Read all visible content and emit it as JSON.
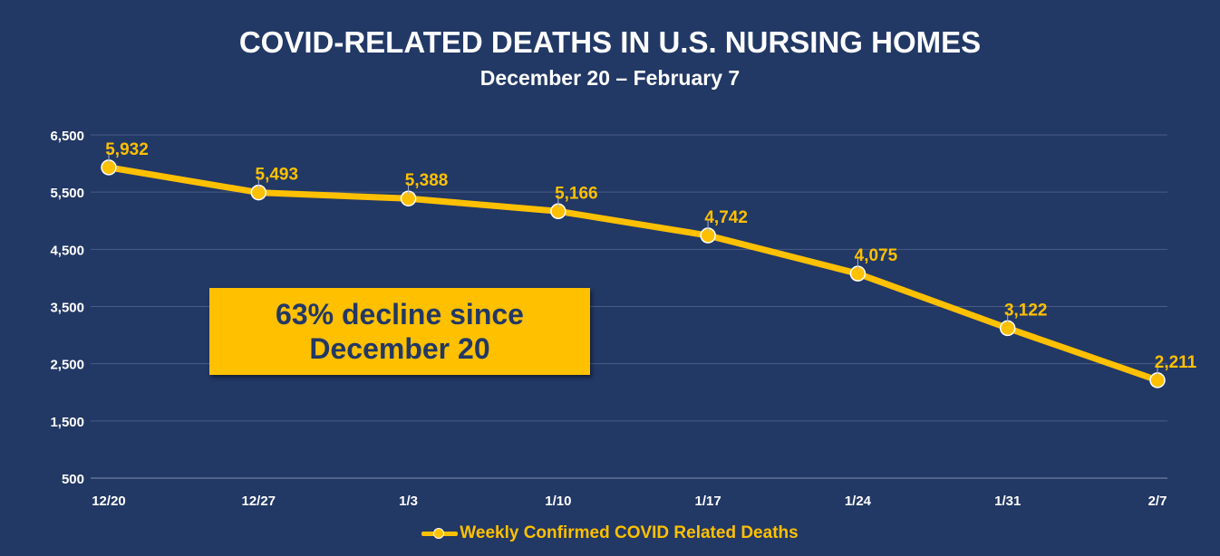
{
  "chart_data": {
    "type": "line",
    "title": "COVID-RELATED DEATHS IN U.S. NURSING HOMES",
    "subtitle": "December 20 – February 7",
    "categories": [
      "12/20",
      "12/27",
      "1/3",
      "1/10",
      "1/17",
      "1/24",
      "1/31",
      "2/7"
    ],
    "series": [
      {
        "name": "Weekly Confirmed COVID Related Deaths",
        "values": [
          5932,
          5493,
          5388,
          5166,
          4742,
          4075,
          3122,
          2211
        ],
        "value_labels": [
          "5,932",
          "5,493",
          "5,388",
          "5,166",
          "4,742",
          "4,075",
          "3,122",
          "2,211"
        ]
      }
    ],
    "yticks": [
      500,
      1500,
      2500,
      3500,
      4500,
      5500,
      6500
    ],
    "ytick_labels": [
      "500",
      "1,500",
      "2,500",
      "3,500",
      "4,500",
      "5,500",
      "6,500"
    ],
    "ylim": [
      500,
      6500
    ],
    "grid": true,
    "legend_position": "bottom",
    "annotation": {
      "line1": "63% decline since",
      "line2": "December 20"
    },
    "colors": {
      "background": "#223865",
      "series": "#FFC000",
      "gridline": "#4a5d85",
      "axis_text": "#ffffff"
    }
  }
}
